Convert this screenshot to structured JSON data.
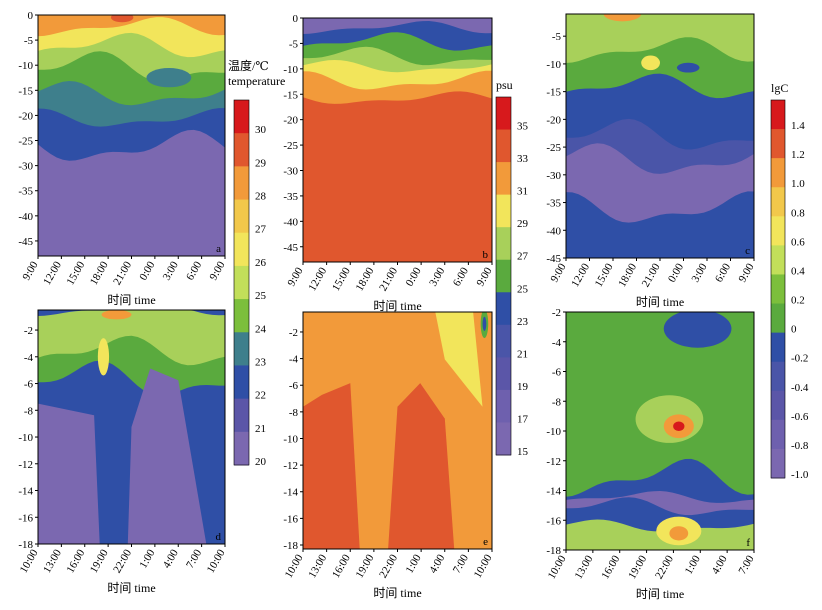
{
  "chart_data": [
    {
      "type": "heatmap",
      "panel": "a",
      "xlabel": "时间 time",
      "x_ticks": [
        "9:00",
        "12:00",
        "15:00",
        "18:00",
        "21:00",
        "0:00",
        "3:00",
        "6:00",
        "9:00"
      ],
      "y_ticks": [
        0,
        -5,
        -10,
        -15,
        -20,
        -25,
        -30,
        -35,
        -40,
        -45
      ],
      "ylim": [
        -48,
        0
      ],
      "colorbar": "temperature",
      "colors": [
        "#7b68b0",
        "#2f4fa6",
        "#3e7f8c",
        "#5aaa3e",
        "#a8d05a",
        "#f2e55b",
        "#f29a3a",
        "#e0572e",
        "#d7191c"
      ]
    },
    {
      "type": "heatmap",
      "panel": "b",
      "xlabel": "时间 time",
      "x_ticks": [
        "9:00",
        "12:00",
        "15:00",
        "18:00",
        "21:00",
        "0:00",
        "3:00",
        "6:00",
        "9:00"
      ],
      "y_ticks": [
        0,
        -5,
        -10,
        -15,
        -20,
        -25,
        -30,
        -35,
        -40,
        -45
      ],
      "ylim": [
        -48,
        0
      ],
      "colorbar": "salinity",
      "colors": [
        "#7b68b0",
        "#2f4fa6",
        "#5aaa3e",
        "#a8d05a",
        "#f2e55b",
        "#f29a3a",
        "#e0572e"
      ]
    },
    {
      "type": "heatmap",
      "panel": "c",
      "xlabel": "时间 time",
      "x_ticks": [
        "9:00",
        "12:00",
        "15:00",
        "18:00",
        "21:00",
        "0:00",
        "3:00",
        "6:00",
        "9:00"
      ],
      "y_ticks": [
        -5,
        -10,
        -15,
        -20,
        -25,
        -30,
        -35,
        -40,
        -45
      ],
      "ylim": [
        -45,
        -1
      ],
      "colorbar": "lgC",
      "colors": [
        "#7b68b0",
        "#2f4fa6",
        "#5aaa3e",
        "#a8d05a",
        "#f2e55b"
      ]
    },
    {
      "type": "heatmap",
      "panel": "d",
      "xlabel": "时间 time",
      "x_ticks": [
        "10:00",
        "13:00",
        "16:00",
        "19:00",
        "22:00",
        "1:00",
        "4:00",
        "7:00",
        "10:00"
      ],
      "y_ticks": [
        -2,
        -4,
        -6,
        -8,
        -10,
        -12,
        -14,
        -16,
        -18
      ],
      "ylim": [
        -18,
        -0.5
      ],
      "colorbar": "temperature"
    },
    {
      "type": "heatmap",
      "panel": "e",
      "xlabel": "时间 time",
      "x_ticks": [
        "10:00",
        "13:00",
        "16:00",
        "19:00",
        "22:00",
        "1:00",
        "4:00",
        "7:00",
        "10:00"
      ],
      "y_ticks": [
        -2,
        -4,
        -6,
        -8,
        -10,
        -12,
        -14,
        -16,
        -18
      ],
      "ylim": [
        -18.3,
        -0.5
      ],
      "colorbar": "salinity"
    },
    {
      "type": "heatmap",
      "panel": "f",
      "xlabel": "时间 time",
      "x_ticks": [
        "10:00",
        "13:00",
        "16:00",
        "19:00",
        "22:00",
        "1:00",
        "4:00",
        "7:00"
      ],
      "y_ticks": [
        -2,
        -4,
        -6,
        -8,
        -10,
        -12,
        -14,
        -16,
        -18
      ],
      "ylim": [
        -18,
        -2
      ],
      "colorbar": "lgC"
    }
  ],
  "colorbars": {
    "temperature": {
      "title_cn": "温度/℃",
      "title_en": "temperature",
      "ticks": [
        "30",
        "29",
        "28",
        "27",
        "26",
        "25",
        "24",
        "23",
        "22",
        "21",
        "20"
      ],
      "colors": [
        "#d7191c",
        "#e0572e",
        "#f29a3a",
        "#f2c84b",
        "#f2e55b",
        "#c2df5a",
        "#7cbf3c",
        "#3e7f8c",
        "#2f4fa6",
        "#5b56a8",
        "#7b68b0"
      ]
    },
    "salinity": {
      "title": "psu",
      "ticks": [
        "35",
        "33",
        "31",
        "29",
        "27",
        "25",
        "23",
        "21",
        "19",
        "17",
        "15"
      ],
      "colors": [
        "#d7191c",
        "#e0572e",
        "#f29a3a",
        "#f2e55b",
        "#a8d05a",
        "#5aaa3e",
        "#2f4fa6",
        "#4a55a8",
        "#5b56a8",
        "#6e60ae",
        "#7b68b0"
      ]
    },
    "lgC": {
      "title": "lgC",
      "ticks": [
        "1.4",
        "1.2",
        "1.0",
        "0.8",
        "0.6",
        "0.4",
        "0.2",
        "0",
        "-0.2",
        "-0.4",
        "-0.6",
        "-0.8",
        "-1.0"
      ],
      "colors": [
        "#d7191c",
        "#e0572e",
        "#f29a3a",
        "#f2c84b",
        "#f2e55b",
        "#c2df5a",
        "#7cbf3c",
        "#5aaa3e",
        "#2f4fa6",
        "#4a55a8",
        "#5b56a8",
        "#6e60ae",
        "#7b68b0"
      ]
    }
  }
}
